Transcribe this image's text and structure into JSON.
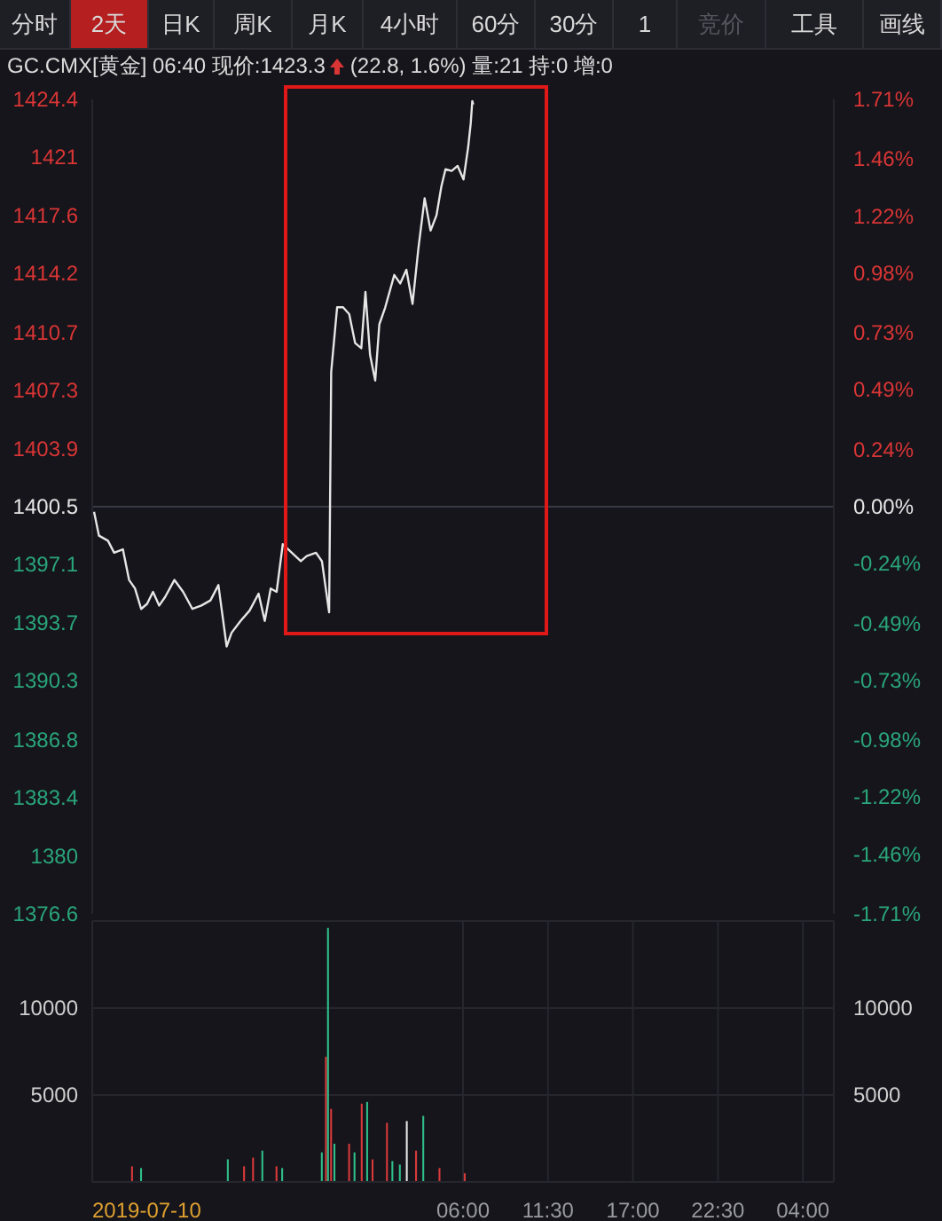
{
  "chart_data": [
    {
      "type": "other",
      "annotations": [
        "分时",
        "2天",
        "日K",
        "周K",
        "月K",
        "4小时",
        "60分",
        "30分",
        "1",
        "竞价",
        "工具",
        "画线"
      ]
    },
    {
      "type": "line",
      "title": "GC.CMX[黄金] 06:40 现价:1423.3",
      "subtitle": "(22.8, 1.6%) 量:21 持:0 增:0",
      "x": [
        "2019-07-10T06:07",
        "2019-07-10T06:26",
        "2019-07-10T07:01",
        "2019-07-10T07:25",
        "2019-07-10T07:59",
        "2019-07-10T08:23",
        "2019-07-10T08:46",
        "2019-07-10T09:10",
        "2019-07-10T09:33",
        "2019-07-10T09:56",
        "2019-07-10T10:20",
        "2019-07-10T10:43",
        "2019-07-10T11:19",
        "2019-07-10T11:53",
        "2019-07-10T12:29",
        "2019-07-10T13:04",
        "2019-07-10T13:39",
        "2019-07-10T14:10",
        "2019-07-10T14:42",
        "2019-07-10T15:01",
        "2019-07-10T15:36",
        "2019-07-10T16:11",
        "2019-07-10T16:46",
        "2019-07-10T17:10",
        "2019-07-10T17:33",
        "2019-07-10T17:56",
        "2019-07-10T18:20",
        "2019-07-10T18:55",
        "2019-07-10T19:30",
        "2019-07-10T19:53",
        "2019-07-10T20:29",
        "2019-07-10T20:52",
        "2019-07-10T21:20",
        "2019-07-10T21:28",
        "2019-07-10T21:51",
        "2019-07-10T22:14",
        "2019-07-10T22:38",
        "2019-07-10T23:01",
        "2019-07-10T23:25",
        "2019-07-10T23:41",
        "2019-07-10T23:59",
        "2019-07-11T00:19",
        "2019-07-11T00:35",
        "2019-07-11T00:58",
        "2019-07-11T01:33",
        "2019-07-11T01:56",
        "2019-07-11T02:20",
        "2019-07-11T02:44",
        "2019-07-11T03:07",
        "2019-07-11T03:31",
        "2019-07-11T03:54",
        "2019-07-11T04:17",
        "2019-07-11T04:36",
        "2019-07-11T04:52",
        "2019-07-11T05:16",
        "2019-07-11T05:39",
        "2019-07-11T06:02",
        "2019-07-11T06:20",
        "2019-07-11T06:30",
        "2019-07-11T06:36",
        "2019-07-11T06:40"
      ],
      "series": [
        {
          "color": "#e6e6e6",
          "values": [
            1400.2,
            1398.8,
            1398.5,
            1397.8,
            1398.0,
            1396.2,
            1395.7,
            1394.5,
            1394.8,
            1395.5,
            1394.7,
            1395.2,
            1396.2,
            1395.5,
            1394.5,
            1394.7,
            1395.0,
            1395.9,
            1392.3,
            1393.1,
            1393.8,
            1394.4,
            1395.4,
            1393.8,
            1395.7,
            1395.5,
            1398.3,
            1397.8,
            1397.3,
            1397.6,
            1397.8,
            1397.3,
            1394.3,
            1408.4,
            1412.2,
            1412.2,
            1411.8,
            1410.1,
            1409.8,
            1413.1,
            1409.4,
            1407.9,
            1411.2,
            1412.2,
            1414.1,
            1413.6,
            1414.4,
            1412.4,
            1415.7,
            1418.6,
            1416.7,
            1417.6,
            1419.3,
            1420.3,
            1420.2,
            1420.5,
            1419.7,
            1421.6,
            1423.0,
            1424.3,
            1424.1
          ]
        }
      ],
      "xlim": [
        "2019-07-10T06:00",
        "2019-07-12T06:00"
      ],
      "ylim": [
        1376.6,
        1424.4
      ],
      "yticks": [
        1376.6,
        1380.0,
        1383.4,
        1386.8,
        1390.3,
        1393.7,
        1397.1,
        1400.5,
        1403.9,
        1407.3,
        1410.7,
        1414.2,
        1417.6,
        1421.0,
        1424.4
      ],
      "y2lim": [
        -1.71,
        1.71
      ],
      "y2ticks": [
        {
          "value": -1.71,
          "label": "-1.71%"
        },
        {
          "value": -1.46,
          "label": "-1.46%"
        },
        {
          "value": -1.22,
          "label": "-1.22%"
        },
        {
          "value": -0.98,
          "label": "-0.98%"
        },
        {
          "value": -0.73,
          "label": "-0.73%"
        },
        {
          "value": -0.49,
          "label": "-0.49%"
        },
        {
          "value": -0.24,
          "label": "-0.24%"
        },
        {
          "value": 0,
          "label": "0.00%"
        },
        {
          "value": 0.24,
          "label": "0.24%"
        },
        {
          "value": 0.49,
          "label": "0.49%"
        },
        {
          "value": 0.73,
          "label": "0.73%"
        },
        {
          "value": 0.98,
          "label": "0.98%"
        },
        {
          "value": 1.22,
          "label": "1.22%"
        },
        {
          "value": 1.46,
          "label": "1.46%"
        },
        {
          "value": 1.71,
          "label": "1.71%"
        }
      ],
      "ref_lines": [
        {
          "axis": "y",
          "value": 1400.5,
          "color": "#3a3a46"
        }
      ],
      "tick_labels": "y",
      "marker": "none"
    },
    {
      "type": "bar",
      "x": [
        "2019-07-10T08:35",
        "2019-07-10T09:10",
        "2019-07-10T14:47",
        "2019-07-10T15:50",
        "2019-07-10T16:25",
        "2019-07-10T17:01",
        "2019-07-10T17:56",
        "2019-07-10T18:18",
        "2019-07-10T20:52",
        "2019-07-10T21:08",
        "2019-07-10T21:16",
        "2019-07-10T21:28",
        "2019-07-10T21:41",
        "2019-07-10T22:38",
        "2019-07-10T22:59",
        "2019-07-10T23:27",
        "2019-07-10T23:48",
        "2019-07-11T00:09",
        "2019-07-11T01:05",
        "2019-07-11T01:26",
        "2019-07-11T01:55",
        "2019-07-11T02:22",
        "2019-07-11T02:58",
        "2019-07-11T03:26",
        "2019-07-11T04:29",
        "2019-07-11T06:07"
      ],
      "values": [
        900,
        800,
        1300,
        900,
        1400,
        1800,
        900,
        800,
        1700,
        7200,
        14600,
        4200,
        2200,
        2200,
        1700,
        4500,
        4600,
        1300,
        3400,
        1200,
        1000,
        3500,
        1800,
        3800,
        800,
        500
      ],
      "colors": [
        "#d83a3a",
        "#2fbf8a",
        "#2fbf8a",
        "#d83a3a",
        "#d83a3a",
        "#2fbf8a",
        "#d83a3a",
        "#2fbf8a",
        "#2fbf8a",
        "#d83a3a",
        "#2fbf8a",
        "#d83a3a",
        "#2fbf8a",
        "#d83a3a",
        "#2fbf8a",
        "#d83a3a",
        "#2fbf8a",
        "#d83a3a",
        "#d83a3a",
        "#2fbf8a",
        "#2fbf8a",
        "#e6e6e6",
        "#d83a3a",
        "#2fbf8a",
        "#d83a3a",
        "#d83a3a"
      ],
      "xlim": [
        "2019-07-10T06:00",
        "2019-07-12T06:00"
      ],
      "xticks": [
        {
          "value": "2019-07-10T06:00",
          "label": "2019-07-10"
        },
        {
          "value": "2019-07-11T06:00",
          "label": "06:00"
        },
        {
          "value": "2019-07-11T11:30",
          "label": "11:30"
        },
        {
          "value": "2019-07-11T17:00",
          "label": "17:00"
        },
        {
          "value": "2019-07-11T22:30",
          "label": "22:30"
        },
        {
          "value": "2019-07-12T04:00",
          "label": "04:00"
        }
      ],
      "ylim": [
        0,
        15000
      ],
      "yticks": [
        5000,
        10000
      ],
      "y2lim": [
        0,
        15000
      ],
      "y2ticks": [
        5000,
        10000
      ],
      "grid": true
    }
  ]
}
